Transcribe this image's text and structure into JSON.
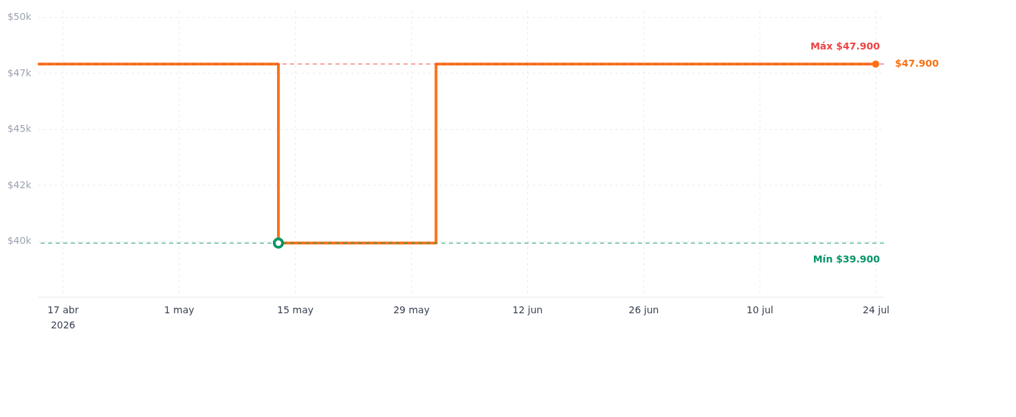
{
  "chart_data": {
    "type": "step",
    "x": [
      "2026-04-14",
      "2026-05-13",
      "2026-06-01",
      "2026-07-24"
    ],
    "series": [
      {
        "color": "#f97316",
        "values": [
          47900,
          39900,
          47900,
          47900
        ]
      }
    ],
    "xlim": [
      "2026-04-14",
      "2026-07-25"
    ],
    "xticks": [
      {
        "value": "2026-04-17",
        "label": "17 abr\n2026"
      },
      {
        "value": "2026-05-01",
        "label": "1 may"
      },
      {
        "value": "2026-05-15",
        "label": "15 may"
      },
      {
        "value": "2026-05-29",
        "label": "29 may"
      },
      {
        "value": "2026-06-12",
        "label": "12 jun"
      },
      {
        "value": "2026-06-26",
        "label": "26 jun"
      },
      {
        "value": "2026-07-10",
        "label": "10 jul"
      },
      {
        "value": "2026-07-24",
        "label": "24 jul"
      }
    ],
    "ylim": [
      37500,
      50300
    ],
    "yticks": [
      {
        "value": 40000,
        "label": "$40k"
      },
      {
        "value": 42500,
        "label": "$42k"
      },
      {
        "value": 45000,
        "label": "$45k"
      },
      {
        "value": 47500,
        "label": "$47k"
      },
      {
        "value": 50000,
        "label": "$50k"
      }
    ],
    "ref_lines": [
      {
        "axis": "y",
        "value": 47900,
        "label": "Máx $47.900",
        "color": "#ef4444",
        "line_style": "dashed"
      },
      {
        "axis": "y",
        "value": 39900,
        "label": "Mín $39.900",
        "color": "#059669",
        "line_style": "dashed"
      }
    ],
    "annotations": [
      {
        "text": "$47.900",
        "x": "2026-07-24",
        "y": 47900
      }
    ],
    "grid": true
  }
}
